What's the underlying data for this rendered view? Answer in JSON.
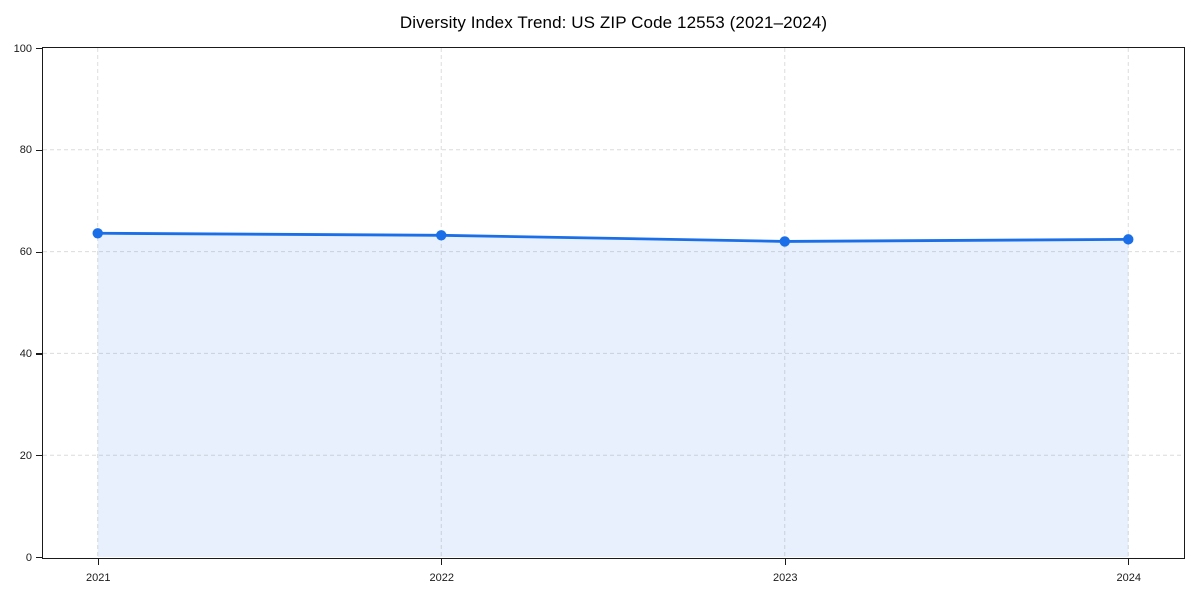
{
  "chart_data": {
    "type": "area",
    "title": "Diversity Index Trend: US ZIP Code 12553 (2021–2024)",
    "x": [
      2021,
      2022,
      2023,
      2024
    ],
    "series": [
      {
        "name": "Diversity Index",
        "values": [
          63.6,
          63.2,
          62.0,
          62.4
        ]
      }
    ],
    "xlabel": "",
    "ylabel": "",
    "ylim": [
      0,
      100
    ],
    "yticks": [
      0,
      20,
      40,
      60,
      80,
      100
    ],
    "grid": "both",
    "grid_style": "dashed",
    "legend_position": "none",
    "colors": {
      "line": "#1a6fe8",
      "marker": "#1a6fe8",
      "fill": "rgba(26,111,232,0.10)",
      "grid": "#dcdcdc",
      "spine": "#1a1a1a",
      "tick_text": "#1a1a1a",
      "title_text": "#000000",
      "background": "#ffffff"
    }
  }
}
